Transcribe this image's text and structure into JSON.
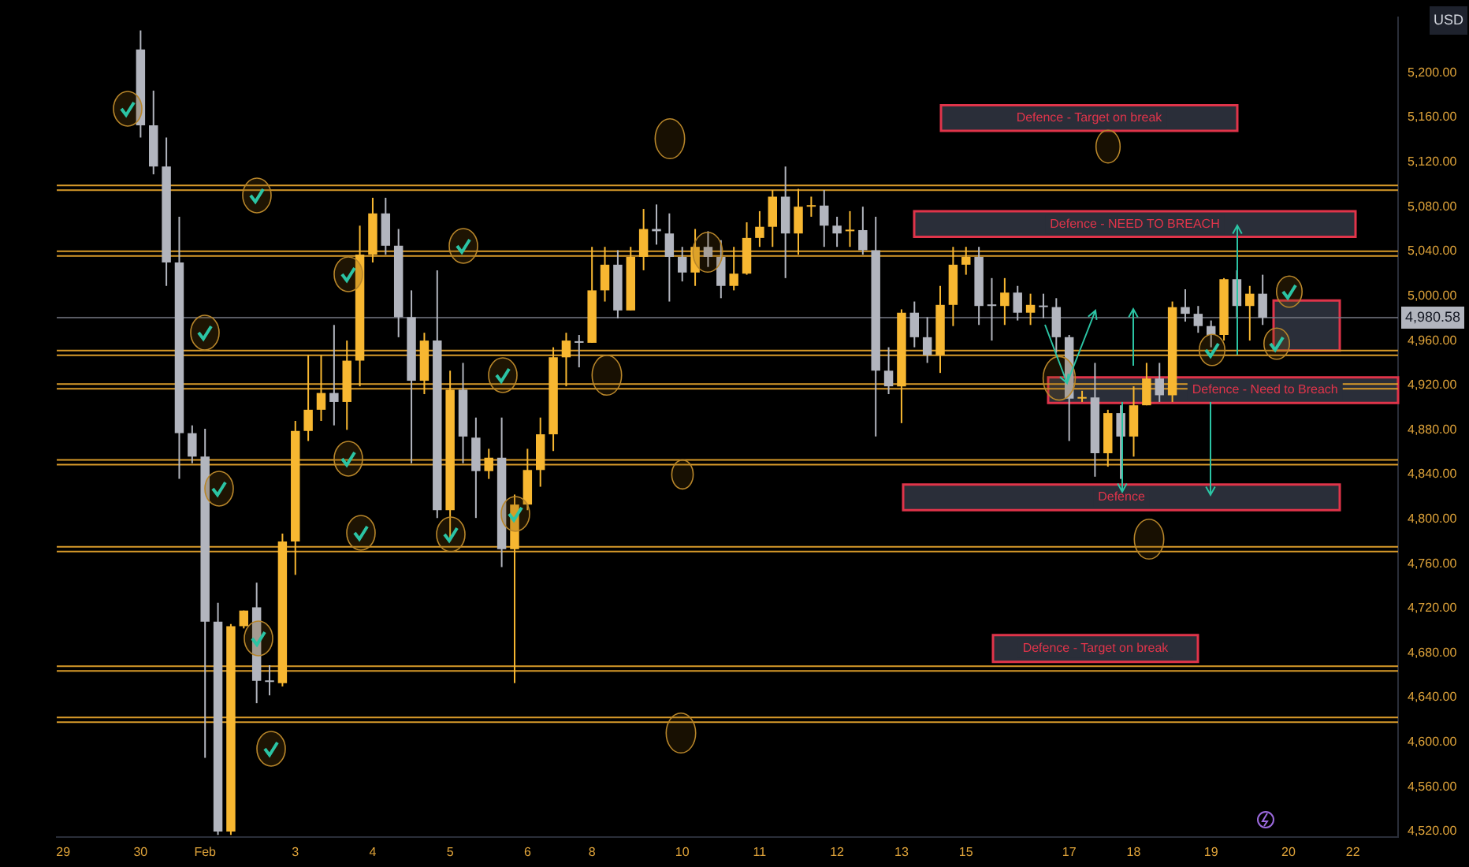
{
  "chart_data": {
    "type": "candlestick",
    "ylabel": "USD",
    "categories": [
      "29",
      null,
      null,
      null,
      null,
      null,
      "30",
      null,
      null,
      null,
      null,
      "Feb",
      null,
      null,
      null,
      null,
      null,
      null,
      "3",
      null,
      null,
      null,
      null,
      null,
      "4",
      null,
      null,
      null,
      null,
      null,
      "5",
      null,
      null,
      null,
      null,
      null,
      "6",
      null,
      null,
      null,
      null,
      "8",
      null,
      null,
      null,
      null,
      null,
      null,
      "10",
      null,
      null,
      null,
      null,
      null,
      "11",
      null,
      null,
      null,
      null,
      null,
      "12",
      null,
      null,
      null,
      null,
      "13",
      null,
      null,
      null,
      null,
      "15",
      null,
      null,
      null,
      null,
      null,
      null,
      null,
      "17",
      null,
      null,
      null,
      null,
      "18",
      null,
      null,
      null,
      null,
      null,
      "19",
      null,
      null,
      null,
      null,
      null,
      "20",
      null,
      null,
      null,
      null,
      "22",
      null,
      null,
      null
    ],
    "ohlc": [
      null,
      null,
      null,
      null,
      null,
      null,
      [
        5221,
        5238,
        5142,
        5153
      ],
      [
        5153,
        5184,
        5109,
        5116
      ],
      [
        5116,
        5142,
        5009,
        5030
      ],
      [
        5030,
        5071,
        4836,
        4877
      ],
      [
        4877,
        4884,
        4850,
        4856
      ],
      [
        4856,
        4881,
        4586,
        4708
      ],
      [
        4708,
        4725,
        4517,
        4520
      ],
      [
        4520,
        4706,
        4517,
        4704
      ],
      [
        4704,
        4718,
        4702,
        4718
      ],
      [
        4721,
        4743,
        4635,
        4655
      ],
      [
        4655,
        4669,
        4642,
        4654
      ],
      [
        4653,
        4787,
        4650,
        4780
      ],
      [
        4780,
        4888,
        4750,
        4879
      ],
      [
        4879,
        4947,
        4870,
        4898
      ],
      [
        4898,
        4947,
        4888,
        4913
      ],
      [
        4913,
        4974,
        4884,
        4905
      ],
      [
        4905,
        4960,
        4880,
        4942
      ],
      [
        4942,
        5063,
        4919,
        5037
      ],
      [
        5037,
        5088,
        5030,
        5074
      ],
      [
        5074,
        5088,
        5037,
        5045
      ],
      [
        5045,
        5060,
        4963,
        4981
      ],
      [
        4981,
        5005,
        4850,
        4924
      ],
      [
        4924,
        4967,
        4912,
        4960
      ],
      [
        4960,
        5023,
        4801,
        4808
      ],
      [
        4808,
        4933,
        4780,
        4916
      ],
      [
        4916,
        4940,
        4850,
        4874
      ],
      [
        4873,
        4891,
        4801,
        4843
      ],
      [
        4843,
        4863,
        4836,
        4855
      ],
      [
        4855,
        4891,
        4757,
        4773
      ],
      [
        4773,
        4822,
        4653,
        4813
      ],
      [
        4813,
        4863,
        4808,
        4844
      ],
      [
        4844,
        4891,
        4829,
        4876
      ],
      [
        4876,
        4954,
        4861,
        4945
      ],
      [
        4945,
        4967,
        4919,
        4960
      ],
      [
        4959,
        4965,
        4936,
        4958
      ],
      [
        4958,
        5044,
        4958,
        5005
      ],
      [
        5005,
        5044,
        4995,
        5028
      ],
      [
        5028,
        5041,
        4980,
        4987
      ],
      [
        4987,
        5044,
        4987,
        5035
      ],
      [
        5035,
        5078,
        5023,
        5060
      ],
      [
        5060,
        5082,
        5046,
        5058
      ],
      [
        5056,
        5074,
        4995,
        5035
      ],
      [
        5035,
        5044,
        5013,
        5021
      ],
      [
        5021,
        5060,
        5009,
        5044
      ],
      [
        5044,
        5058,
        5026,
        5035
      ],
      [
        5035,
        5050,
        4998,
        5009
      ],
      [
        5009,
        5044,
        5005,
        5020
      ],
      [
        5020,
        5066,
        5019,
        5052
      ],
      [
        5052,
        5076,
        5044,
        5062
      ],
      [
        5062,
        5095,
        5044,
        5089
      ],
      [
        5089,
        5116,
        5016,
        5056
      ],
      [
        5056,
        5096,
        5037,
        5080
      ],
      [
        5080,
        5089,
        5071,
        5081
      ],
      [
        5081,
        5095,
        5044,
        5063
      ],
      [
        5063,
        5071,
        5044,
        5056
      ],
      [
        5058,
        5076,
        5044,
        5059
      ],
      [
        5059,
        5080,
        5037,
        5041
      ],
      [
        5041,
        5071,
        4874,
        4933
      ],
      [
        4933,
        4954,
        4912,
        4919
      ],
      [
        4919,
        4988,
        4886,
        4985
      ],
      [
        4985,
        4995,
        4954,
        4963
      ],
      [
        4963,
        4981,
        4940,
        4947
      ],
      [
        4947,
        5009,
        4931,
        4992
      ],
      [
        4992,
        5044,
        4973,
        5028
      ],
      [
        5028,
        5044,
        5019,
        5035
      ],
      [
        5035,
        5044,
        4974,
        4991
      ],
      [
        4992,
        5016,
        4960,
        4991
      ],
      [
        4991,
        5016,
        4974,
        5003
      ],
      [
        5003,
        5009,
        4978,
        4985
      ],
      [
        4985,
        5002,
        4974,
        4992
      ],
      [
        4991,
        5002,
        4980,
        4990
      ],
      [
        4990,
        4998,
        4949,
        4963
      ],
      [
        4963,
        4965,
        4870,
        4908
      ],
      [
        4908,
        4915,
        4905,
        4909
      ],
      [
        4909,
        4940,
        4838,
        4859
      ],
      [
        4859,
        4898,
        4847,
        4895
      ],
      [
        4895,
        4902,
        4836,
        4874
      ],
      [
        4874,
        4919,
        4856,
        4902
      ],
      [
        4902,
        4940,
        4902,
        4926
      ],
      [
        4926,
        4940,
        4905,
        4911
      ],
      [
        4911,
        4995,
        4905,
        4990
      ],
      [
        4990,
        5006,
        4977,
        4984
      ],
      [
        4984,
        4991,
        4967,
        4973
      ],
      [
        4973,
        4978,
        4954,
        4965
      ],
      [
        4965,
        5016,
        4960,
        5015
      ],
      [
        5015,
        5023,
        4981,
        4991
      ],
      [
        4991,
        5009,
        4960,
        5002
      ],
      [
        5002,
        5019,
        4974,
        4980.58
      ],
      null,
      null,
      null,
      null,
      null,
      null,
      null,
      null,
      null,
      null
    ],
    "colors": [
      null,
      null,
      null,
      null,
      null,
      null,
      "#b2b5be",
      "#b2b5be",
      "#b2b5be",
      "#b2b5be",
      "#b2b5be",
      "#b2b5be",
      "#b2b5be",
      "#f7b731",
      "#f7b731",
      "#b2b5be",
      "#b2b5be",
      "#f7b731",
      "#f7b731",
      "#f7b731",
      "#f7b731",
      "#b2b5be",
      "#f7b731",
      "#f7b731",
      "#f7b731",
      "#b2b5be",
      "#b2b5be",
      "#b2b5be",
      "#f7b731",
      "#b2b5be",
      "#f7b731",
      "#b2b5be",
      "#b2b5be",
      "#f7b731",
      "#b2b5be",
      "#f7b731",
      "#f7b731",
      "#f7b731",
      "#f7b731",
      "#f7b731",
      "#b2b5be",
      "#f7b731",
      "#f7b731",
      "#b2b5be",
      "#f7b731",
      "#f7b731",
      "#b2b5be",
      "#b2b5be",
      "#b2b5be",
      "#f7b731",
      "#b2b5be",
      "#b2b5be",
      "#f7b731",
      "#f7b731",
      "#f7b731",
      "#f7b731",
      "#b2b5be",
      "#f7b731",
      "#f7b731",
      "#b2b5be",
      "#b2b5be",
      "#f7b731",
      "#b2b5be",
      "#b2b5be",
      "#b2b5be",
      "#f7b731",
      "#b2b5be",
      "#b2b5be",
      "#f7b731",
      "#f7b731",
      "#f7b731",
      "#b2b5be",
      "#b2b5be",
      "#f7b731",
      "#b2b5be",
      "#f7b731",
      "#b2b5be",
      "#b2b5be",
      "#b2b5be",
      "#f7b731",
      "#b2b5be",
      "#f7b731",
      "#b2b5be",
      "#f7b731",
      "#f7b731",
      "#b2b5be",
      "#f7b731",
      "#b2b5be",
      "#b2b5be",
      "#b2b5be",
      "#f7b731",
      "#b2b5be",
      "#f7b731",
      "#b2b5be",
      null,
      null,
      null,
      null,
      null,
      null,
      null,
      null,
      null,
      null
    ],
    "ylim": [
      4515,
      5250
    ],
    "yticks": [
      {
        "value": 4520,
        "label": "4,520.00"
      },
      {
        "value": 4560,
        "label": "4,560.00"
      },
      {
        "value": 4600,
        "label": "4,600.00"
      },
      {
        "value": 4640,
        "label": "4,640.00"
      },
      {
        "value": 4680,
        "label": "4,680.00"
      },
      {
        "value": 4720,
        "label": "4,720.00"
      },
      {
        "value": 4760,
        "label": "4,760.00"
      },
      {
        "value": 4800,
        "label": "4,800.00"
      },
      {
        "value": 4840,
        "label": "4,840.00"
      },
      {
        "value": 4880,
        "label": "4,880.00"
      },
      {
        "value": 4920,
        "label": "4,920.00"
      },
      {
        "value": 4960,
        "label": "4,960.00"
      },
      {
        "value": 5000,
        "label": "5,000.00"
      },
      {
        "value": 5040,
        "label": "5,040.00"
      },
      {
        "value": 5080,
        "label": "5,080.00"
      },
      {
        "value": 5120,
        "label": "5,120.00"
      },
      {
        "value": 5160,
        "label": "5,160.00"
      },
      {
        "value": 5200,
        "label": "5,200.00"
      }
    ],
    "ref_lines": [
      {
        "axis": "y",
        "value": 5097,
        "color": "#d89a2a"
      },
      {
        "axis": "y",
        "value": 5038,
        "color": "#d89a2a"
      },
      {
        "axis": "y",
        "value": 4949,
        "color": "#d89a2a"
      },
      {
        "axis": "y",
        "value": 4919,
        "color": "#d89a2a"
      },
      {
        "axis": "y",
        "value": 4851,
        "color": "#d89a2a"
      },
      {
        "axis": "y",
        "value": 4773,
        "color": "#d89a2a"
      },
      {
        "axis": "y",
        "value": 4666,
        "color": "#d89a2a"
      },
      {
        "axis": "y",
        "value": 4620,
        "color": "#d89a2a"
      },
      {
        "axis": "y",
        "value": 4980.58,
        "label": "4,980.58",
        "color": "#787b86"
      }
    ],
    "bands": [
      {
        "axis": "y",
        "from": 5148,
        "to": 5171,
        "label": "Defence - Target on break",
        "color": "#2a2e39"
      },
      {
        "axis": "y",
        "from": 5053,
        "to": 5076,
        "label": "Defence - NEED TO BREACH",
        "color": "#2a2e39"
      },
      {
        "axis": "y",
        "from": 4904,
        "to": 4927,
        "label": "Defence - Need to Breach",
        "color": "#2a2e39"
      },
      {
        "axis": "y",
        "from": 4808,
        "to": 4831,
        "label": "Defence",
        "color": "#2a2e39"
      },
      {
        "axis": "y",
        "from": 4672,
        "to": 4696,
        "label": "Defence - Target on break",
        "color": "#2a2e39"
      },
      {
        "axis": "y",
        "from": 4951,
        "to": 4996,
        "color": "#2a2e39"
      }
    ]
  }
}
